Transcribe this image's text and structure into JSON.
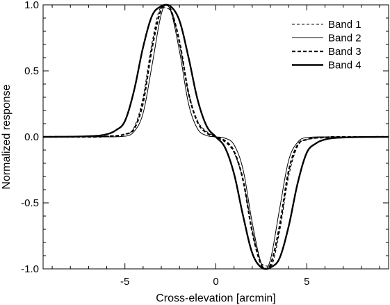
{
  "chart_data": {
    "type": "line",
    "xlabel": "Cross-elevation [arcmin]",
    "ylabel": "Normalized response",
    "xlim": [
      -9.5,
      9.5
    ],
    "ylim": [
      -1.0,
      1.0
    ],
    "x_ticks": [
      -5,
      0,
      5
    ],
    "x_tick_labels": [
      "-5",
      "0",
      "5"
    ],
    "y_ticks": [
      -1.0,
      -0.5,
      0.0,
      0.5,
      1.0
    ],
    "y_tick_labels": [
      "-1.0",
      "-0.5",
      "0.0",
      "0.5",
      "1.0"
    ],
    "grid": false,
    "legend_position": "top-right",
    "series": [
      {
        "name": "Band 1",
        "style": "dashed-thin",
        "color": "#000000",
        "x": [
          -9.5,
          -7,
          -6,
          -5,
          -4.5,
          -4,
          -3.5,
          -3,
          -2.5,
          -2,
          -1.5,
          -1,
          -0.5,
          0,
          0.5,
          1,
          1.5,
          2,
          2.5,
          3,
          3.5,
          4,
          4.5,
          5,
          6,
          7,
          9.5
        ],
        "y": [
          0.0,
          0.0,
          0.005,
          0.02,
          0.07,
          0.3,
          0.72,
          0.98,
          0.96,
          0.7,
          0.33,
          0.12,
          0.04,
          0.0,
          -0.04,
          -0.12,
          -0.33,
          -0.7,
          -0.96,
          -0.98,
          -0.72,
          -0.3,
          -0.07,
          -0.02,
          -0.005,
          0.0,
          0.0
        ]
      },
      {
        "name": "Band 2",
        "style": "solid-thin",
        "color": "#000000",
        "x": [
          -9.5,
          -7,
          -6,
          -5,
          -4.5,
          -4,
          -3.5,
          -3,
          -2.75,
          -2.5,
          -2,
          -1.5,
          -1,
          -0.5,
          0,
          0.5,
          1,
          1.5,
          2,
          2.5,
          2.75,
          3,
          3.5,
          4,
          4.5,
          5,
          6,
          7,
          9.5
        ],
        "y": [
          0.0,
          0.0,
          0.0,
          0.005,
          0.04,
          0.18,
          0.55,
          0.93,
          1.0,
          0.96,
          0.65,
          0.25,
          0.06,
          0.01,
          0.0,
          -0.01,
          -0.06,
          -0.25,
          -0.65,
          -0.96,
          -1.0,
          -0.93,
          -0.55,
          -0.18,
          -0.04,
          -0.005,
          0.0,
          0.0,
          0.0
        ]
      },
      {
        "name": "Band 3",
        "style": "dashed-thick",
        "color": "#000000",
        "x": [
          -9.5,
          -7,
          -6,
          -5,
          -4.5,
          -4,
          -3.5,
          -3,
          -2.75,
          -2.5,
          -2,
          -1.5,
          -1,
          -0.5,
          0,
          0.5,
          1,
          1.5,
          2,
          2.5,
          2.75,
          3,
          3.5,
          4,
          4.5,
          5,
          6,
          7,
          9.5
        ],
        "y": [
          0.0,
          0.0,
          0.004,
          0.02,
          0.06,
          0.26,
          0.68,
          0.97,
          1.0,
          0.97,
          0.72,
          0.33,
          0.11,
          0.03,
          0.0,
          -0.03,
          -0.11,
          -0.33,
          -0.72,
          -0.97,
          -1.0,
          -0.97,
          -0.68,
          -0.26,
          -0.06,
          -0.02,
          -0.004,
          0.0,
          0.0
        ]
      },
      {
        "name": "Band 4",
        "style": "solid-thick",
        "color": "#000000",
        "x": [
          -9.5,
          -7,
          -6,
          -5.5,
          -5,
          -4.5,
          -4,
          -3.5,
          -3,
          -2.75,
          -2.5,
          -2,
          -1.5,
          -1,
          -0.5,
          0,
          0.5,
          1,
          1.5,
          2,
          2.5,
          2.75,
          3,
          3.5,
          4,
          4.5,
          5,
          5.5,
          6,
          7,
          9.5
        ],
        "y": [
          0.0,
          0.005,
          0.02,
          0.05,
          0.12,
          0.35,
          0.68,
          0.92,
          0.99,
          1.0,
          0.99,
          0.88,
          0.6,
          0.28,
          0.08,
          0.0,
          -0.08,
          -0.28,
          -0.6,
          -0.88,
          -0.99,
          -1.0,
          -0.99,
          -0.92,
          -0.68,
          -0.35,
          -0.12,
          -0.05,
          -0.02,
          -0.005,
          0.0
        ]
      }
    ]
  }
}
